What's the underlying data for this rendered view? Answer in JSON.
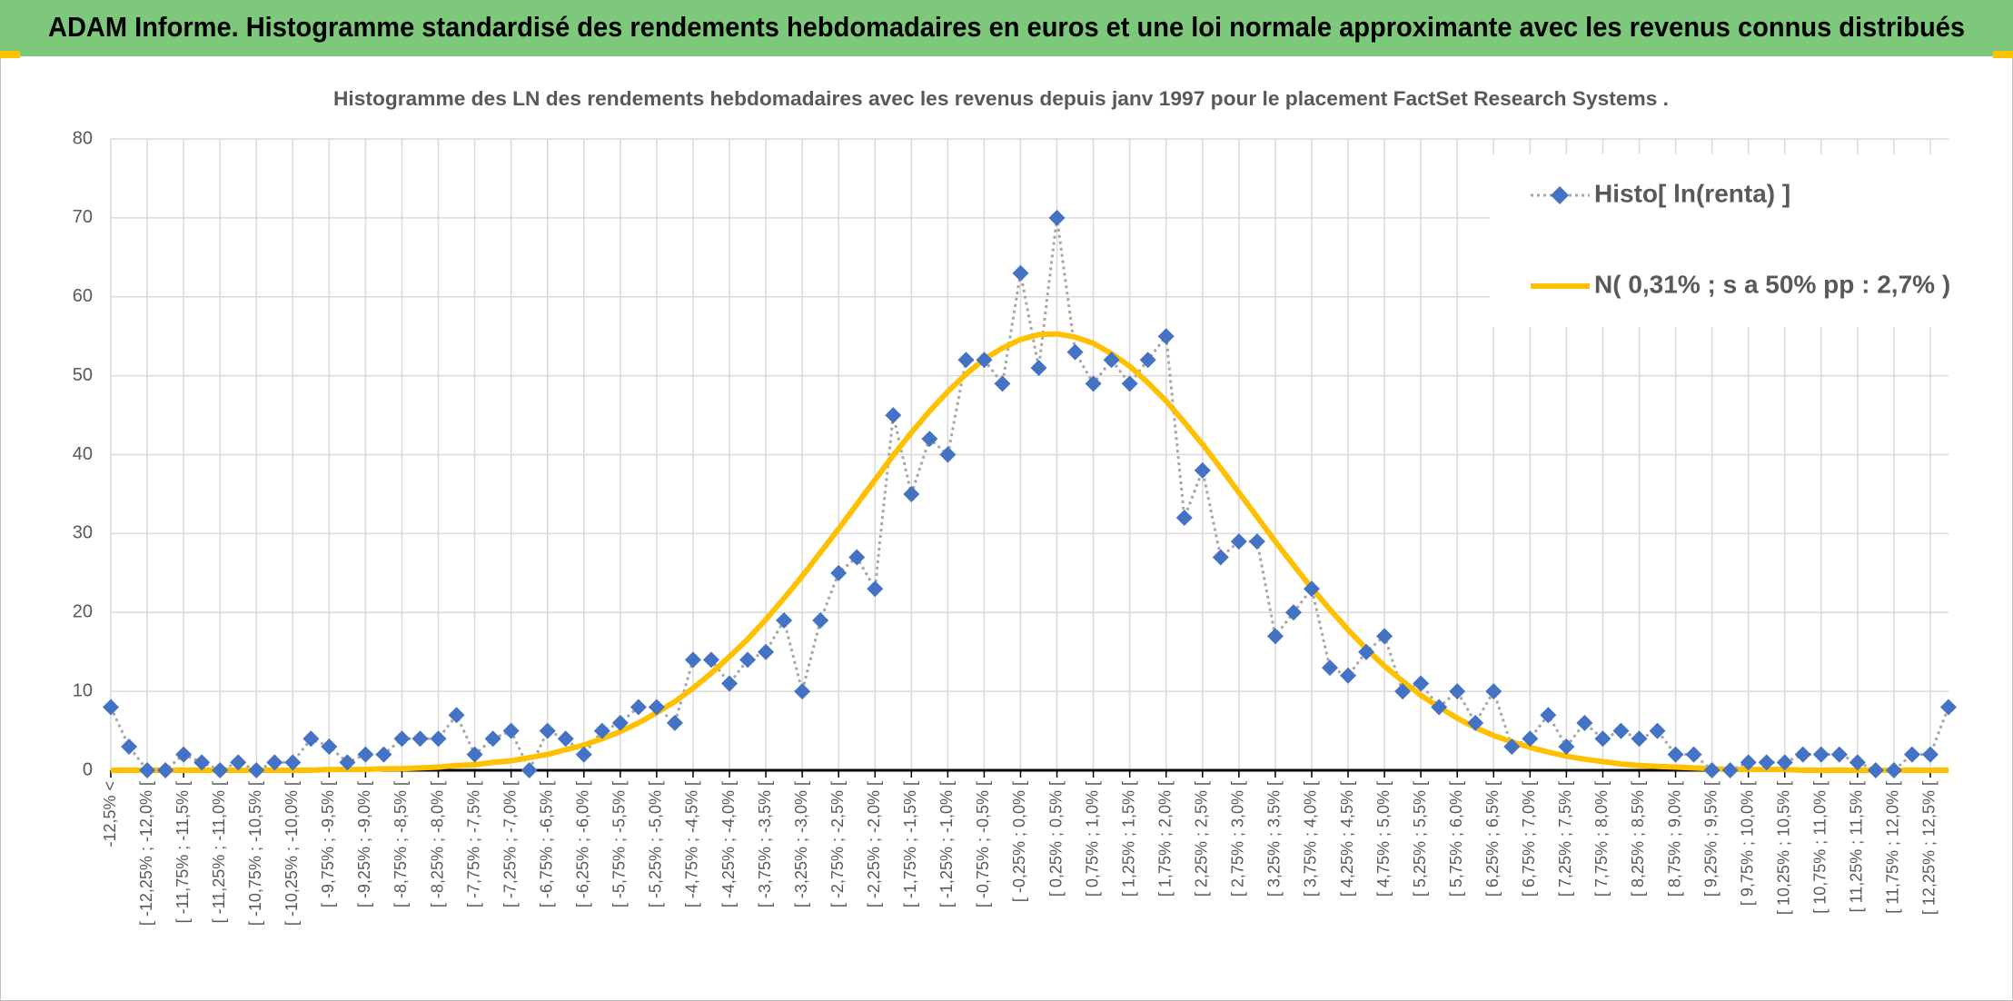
{
  "header": {
    "title": "ADAM Informe. Histogramme standardisé des rendements hebdomadaires en euros et une loi normale approximante avec les revenus connus distribués"
  },
  "chart_data": {
    "type": "line",
    "title": "Histogramme des LN des rendements hebdomadaires avec les revenus depuis janv 1997 pour le placement FactSet Research Systems .",
    "categories": [
      "-12,5% <",
      null,
      "[ -12,25% ; -12,0% [",
      null,
      "[ -11,75% ; -11,5% [",
      null,
      "[ -11,25% ; -11,0% [",
      null,
      "[ -10,75% ; -10,5% [",
      null,
      "[ -10,25% ; -10,0% [",
      null,
      "[ -9,75% ; -9,5% [",
      null,
      "[ -9,25% ; -9,0% [",
      null,
      "[ -8,75% ; -8,5% [",
      null,
      "[ -8,25% ; -8,0% [",
      null,
      "[ -7,75% ; -7,5% [",
      null,
      "[ -7,25% ; -7,0% [",
      null,
      "[ -6,75% ; -6,5% [",
      null,
      "[ -6,25% ; -6,0% [",
      null,
      "[ -5,75% ; -5,5% [",
      null,
      "[ -5,25% ; -5,0% [",
      null,
      "[ -4,75% ; -4,5% [",
      null,
      "[ -4,25% ; -4,0% [",
      null,
      "[ -3,75% ; -3,5% [",
      null,
      "[ -3,25% ; -3,0% [",
      null,
      "[ -2,75% ; -2,5% [",
      null,
      "[ -2,25% ; -2,0% [",
      null,
      "[ -1,75% ; -1,5% [",
      null,
      "[ -1,25% ; -1,0% [",
      null,
      "[ -0,75% ; -0,5% [",
      null,
      "[ -0,25% ; 0,0% [",
      null,
      "[ 0,25% ; 0,5% [",
      null,
      "[ 0,75% ; 1,0% [",
      null,
      "[ 1,25% ; 1,5% [",
      null,
      "[ 1,75% ; 2,0% [",
      null,
      "[ 2,25% ; 2,5% [",
      null,
      "[ 2,75% ; 3,0% [",
      null,
      "[ 3,25% ; 3,5% [",
      null,
      "[ 3,75% ; 4,0% [",
      null,
      "[ 4,25% ; 4,5% [",
      null,
      "[ 4,75% ; 5,0% [",
      null,
      "[ 5,25% ; 5,5% [",
      null,
      "[ 5,75% ; 6,0% [",
      null,
      "[ 6,25% ; 6,5% [",
      null,
      "[ 6,75% ; 7,0% [",
      null,
      "[ 7,25% ; 7,5% [",
      null,
      "[ 7,75% ; 8,0% [",
      null,
      "[ 8,25% ; 8,5% [",
      null,
      "[ 8,75% ; 9,0% [",
      null,
      "[ 9,25% ; 9,5% [",
      null,
      "[ 9,75% ; 10,0% [",
      null,
      "[ 10,25% ; 10,5% [",
      null,
      "[ 10,75% ; 11,0% [",
      null,
      "[ 11,25% ; 11,5% [",
      null,
      "[ 11,75% ; 12,0% [",
      null,
      "[ 12,25% ; 12,5% [",
      null
    ],
    "series": [
      {
        "name": "Histo[ ln(renta) ]",
        "color": "#4472c4",
        "line_color": "#a6a6a6",
        "line_style": "dotted",
        "marker": "diamond",
        "values": [
          8,
          3,
          0,
          0,
          2,
          1,
          0,
          1,
          0,
          1,
          1,
          4,
          3,
          1,
          2,
          2,
          4,
          4,
          4,
          7,
          2,
          4,
          5,
          0,
          5,
          4,
          2,
          5,
          6,
          8,
          8,
          6,
          14,
          14,
          11,
          14,
          15,
          19,
          10,
          19,
          25,
          27,
          23,
          45,
          35,
          42,
          40,
          52,
          52,
          49,
          63,
          51,
          70,
          53,
          49,
          52,
          49,
          52,
          55,
          32,
          38,
          27,
          29,
          29,
          17,
          20,
          23,
          13,
          12,
          15,
          17,
          10,
          11,
          8,
          10,
          6,
          10,
          3,
          4,
          7,
          3,
          6,
          4,
          5,
          4,
          5,
          2,
          2,
          0,
          0,
          1,
          1,
          1,
          2,
          2,
          2,
          1,
          0,
          0,
          2,
          2,
          8
        ]
      },
      {
        "name": "N( 0,31% ; s a 50% pp : 2,7% )",
        "color": "#ffc000",
        "line_style": "solid",
        "values": [
          0,
          0,
          0,
          0,
          0,
          0,
          0,
          0,
          0,
          0,
          0,
          0,
          0.1,
          0.1,
          0.1,
          0.2,
          0.2,
          0.3,
          0.4,
          0.6,
          0.7,
          1.0,
          1.2,
          1.6,
          2.0,
          2.6,
          3.2,
          4.0,
          4.9,
          6.0,
          7.3,
          8.7,
          10.4,
          12.3,
          14.4,
          16.6,
          19.1,
          21.8,
          24.6,
          27.6,
          30.6,
          33.7,
          36.8,
          39.9,
          42.8,
          45.5,
          48.0,
          50.2,
          52.1,
          53.5,
          54.6,
          55.2,
          55.3,
          54.9,
          54.1,
          52.8,
          51.2,
          49.1,
          46.8,
          44.1,
          41.3,
          38.3,
          35.2,
          32.1,
          29.0,
          26.0,
          23.1,
          20.4,
          17.8,
          15.4,
          13.2,
          11.3,
          9.5,
          8.0,
          6.6,
          5.4,
          4.4,
          3.6,
          2.9,
          2.3,
          1.8,
          1.4,
          1.1,
          0.8,
          0.6,
          0.5,
          0.4,
          0.3,
          0.2,
          0.1,
          0.1,
          0.1,
          0.1,
          0,
          0,
          0,
          0,
          0,
          0,
          0,
          0,
          0
        ]
      }
    ],
    "ylim": [
      0,
      80
    ],
    "yticks": [
      0,
      10,
      20,
      30,
      40,
      50,
      60,
      70,
      80
    ],
    "grid": true,
    "legend": "top-right"
  }
}
